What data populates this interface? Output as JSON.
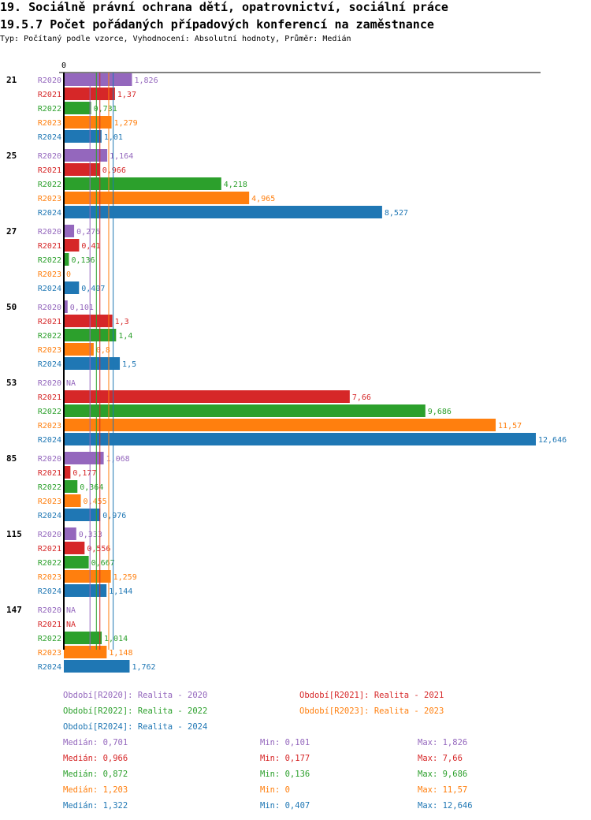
{
  "header": {
    "title": "19. Sociálně právní ochrana dětí, opatrovnictví, sociální práce",
    "subtitle": "19.5.7 Počet pořádaných případových konferencí na zaměstnance",
    "info": "Typ: Počítaný podle vzorce, Vyhodnocení: Absolutní hodnoty, Průměr: Medián"
  },
  "chart_data": {
    "type": "bar",
    "orientation": "horizontal",
    "xlim": [
      0,
      12.646
    ],
    "x_tick_labels": [
      "0"
    ],
    "categories": [
      "21",
      "25",
      "27",
      "50",
      "53",
      "85",
      "115",
      "147"
    ],
    "series": [
      {
        "name": "R2020",
        "color": "#9467bd",
        "values": [
          1.826,
          1.164,
          0.276,
          0.101,
          null,
          1.068,
          0.333,
          null
        ],
        "labels": [
          "1,826",
          "1,164",
          "0,276",
          "0,101",
          "NA",
          "1,068",
          "0,333",
          "NA"
        ]
      },
      {
        "name": "R2021",
        "color": "#d62728",
        "values": [
          1.37,
          0.966,
          0.41,
          1.3,
          7.66,
          0.177,
          0.556,
          null
        ],
        "labels": [
          "1,37",
          "0,966",
          "0,41",
          "1,3",
          "7,66",
          "0,177",
          "0,556",
          "NA"
        ]
      },
      {
        "name": "R2022",
        "color": "#2ca02c",
        "values": [
          0.731,
          4.218,
          0.136,
          1.4,
          9.686,
          0.364,
          0.667,
          1.014
        ],
        "labels": [
          "0,731",
          "4,218",
          "0,136",
          "1,4",
          "9,686",
          "0,364",
          "0,667",
          "1,014"
        ]
      },
      {
        "name": "R2023",
        "color": "#ff7f0e",
        "values": [
          1.279,
          4.965,
          0,
          0.8,
          11.57,
          0.455,
          1.259,
          1.148
        ],
        "labels": [
          "1,279",
          "4,965",
          "0",
          "0,8",
          "11,57",
          "0,455",
          "1,259",
          "1,148"
        ]
      },
      {
        "name": "R2024",
        "color": "#1f77b4",
        "values": [
          1.01,
          8.527,
          0.407,
          1.5,
          12.646,
          0.976,
          1.144,
          1.762
        ],
        "labels": [
          "1,01",
          "8,527",
          "0,407",
          "1,5",
          "12,646",
          "0,976",
          "1,144",
          "1,762"
        ]
      }
    ],
    "medians": [
      0.701,
      0.966,
      0.872,
      1.203,
      1.322
    ],
    "legend": [
      "Období[R2020]: Realita - 2020",
      "Období[R2021]: Realita - 2021",
      "Období[R2022]: Realita - 2022",
      "Období[R2023]: Realita - 2023",
      "Období[R2024]: Realita - 2024"
    ],
    "stats": [
      {
        "median": "Medián: 0,701",
        "min": "Min: 0,101",
        "max": "Max: 1,826"
      },
      {
        "median": "Medián: 0,966",
        "min": "Min: 0,177",
        "max": "Max: 7,66"
      },
      {
        "median": "Medián: 0,872",
        "min": "Min: 0,136",
        "max": "Max: 9,686"
      },
      {
        "median": "Medián: 1,203",
        "min": "Min: 0",
        "max": "Max: 11,57"
      },
      {
        "median": "Medián: 1,322",
        "min": "Min: 0,407",
        "max": "Max: 12,646"
      }
    ]
  }
}
